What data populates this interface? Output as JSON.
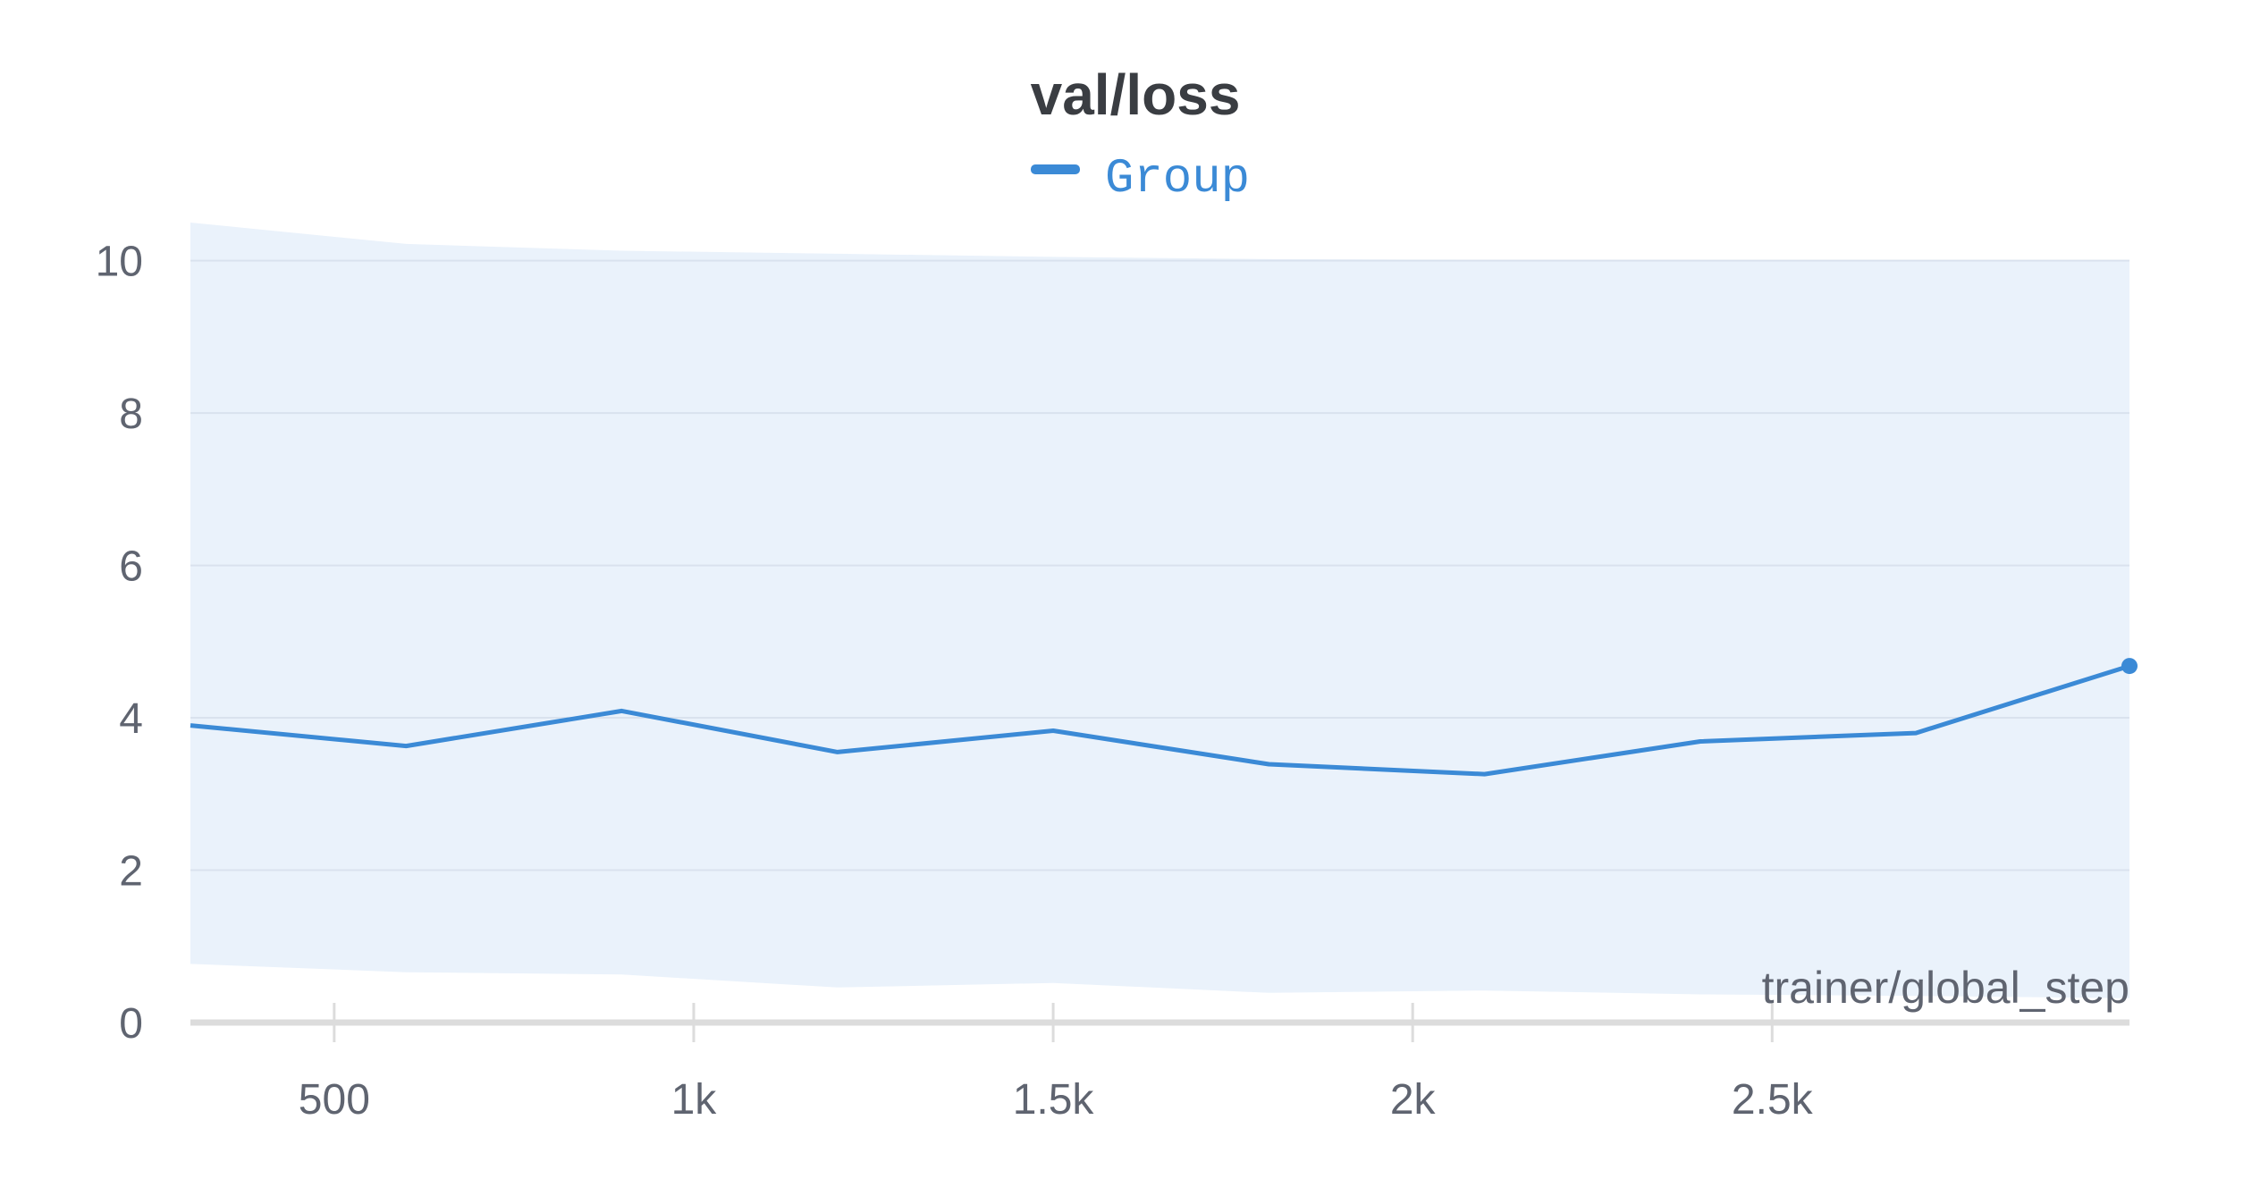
{
  "colors": {
    "series_line": "#3b8ad6",
    "band_fill": "#eaf2fb",
    "grid": "#d9e2ee",
    "axis": "#dcdcdc",
    "text": "#5f6470",
    "title": "#3a3d42"
  },
  "chart_data": {
    "type": "line",
    "title": "val/loss",
    "xlabel": "trainer/global_step",
    "ylabel": "",
    "xlim": [
      300,
      2997
    ],
    "ylim": [
      0,
      10.5
    ],
    "x_ticks": [
      500,
      1000,
      1500,
      2000,
      2500
    ],
    "x_tick_labels": [
      "500",
      "1k",
      "1.5k",
      "2k",
      "2.5k"
    ],
    "y_ticks": [
      0,
      2,
      4,
      6,
      8,
      10
    ],
    "y_tick_labels": [
      "0",
      "2",
      "4",
      "6",
      "8",
      "10"
    ],
    "grid": true,
    "legend_position": "top-center",
    "series": [
      {
        "name": "Group",
        "x": [
          300,
          600,
          900,
          1200,
          1500,
          1800,
          2100,
          2400,
          2700,
          2997
        ],
        "values": [
          3.9,
          3.63,
          4.09,
          3.55,
          3.83,
          3.39,
          3.26,
          3.69,
          3.8,
          4.68
        ],
        "band_upper": [
          10.5,
          10.22,
          10.13,
          10.09,
          10.05,
          10.02,
          10.01,
          10.01,
          10.0,
          10.0
        ],
        "band_lower": [
          0.77,
          0.66,
          0.63,
          0.46,
          0.52,
          0.39,
          0.42,
          0.37,
          0.35,
          0.32
        ]
      }
    ]
  }
}
